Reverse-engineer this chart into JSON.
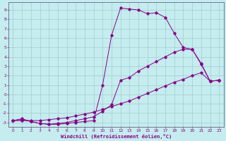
{
  "xlabel": "Windchill (Refroidissement éolien,°C)",
  "bg_color": "#c5ecee",
  "grid_color": "#a0cdd0",
  "line_color": "#880088",
  "xlim": [
    -0.5,
    23.5
  ],
  "ylim": [
    -3.5,
    9.8
  ],
  "yticks": [
    -3,
    -2,
    -1,
    0,
    1,
    2,
    3,
    4,
    5,
    6,
    7,
    8,
    9
  ],
  "xticks": [
    0,
    1,
    2,
    3,
    4,
    5,
    6,
    7,
    8,
    9,
    10,
    11,
    12,
    13,
    14,
    15,
    16,
    17,
    18,
    19,
    20,
    21,
    22,
    23
  ],
  "line1_x": [
    0,
    1,
    2,
    3,
    4,
    5,
    6,
    7,
    8,
    9,
    10,
    11,
    12,
    13,
    14,
    15,
    16,
    17,
    18,
    19,
    20,
    21,
    22,
    23
  ],
  "line1_y": [
    -2.8,
    -2.6,
    -2.9,
    -3.1,
    -3.2,
    -3.2,
    -3.1,
    -3.0,
    -2.9,
    -2.8,
    1.0,
    6.3,
    9.2,
    9.1,
    9.0,
    8.6,
    8.7,
    8.2,
    6.5,
    5.0,
    4.8,
    3.2,
    1.4,
    1.5
  ],
  "line2_x": [
    0,
    1,
    2,
    3,
    4,
    5,
    6,
    7,
    8,
    9,
    10,
    11,
    12,
    13,
    14,
    15,
    16,
    17,
    18,
    19,
    20,
    21,
    22,
    23
  ],
  "line2_y": [
    -2.8,
    -2.7,
    -2.9,
    -3.1,
    -3.2,
    -3.1,
    -3.0,
    -2.8,
    -2.6,
    -2.4,
    -1.8,
    -1.1,
    1.5,
    1.8,
    2.5,
    3.0,
    3.5,
    4.0,
    4.5,
    4.8,
    4.8,
    3.3,
    1.4,
    1.5
  ],
  "line3_x": [
    0,
    1,
    2,
    3,
    4,
    5,
    6,
    7,
    8,
    9,
    10,
    11,
    12,
    13,
    14,
    15,
    16,
    17,
    18,
    19,
    20,
    21,
    22,
    23
  ],
  "line3_y": [
    -2.8,
    -2.8,
    -2.8,
    -2.8,
    -2.7,
    -2.6,
    -2.5,
    -2.3,
    -2.1,
    -1.9,
    -1.6,
    -1.3,
    -1.0,
    -0.7,
    -0.3,
    0.1,
    0.5,
    0.9,
    1.3,
    1.6,
    2.0,
    2.3,
    1.4,
    1.5
  ]
}
